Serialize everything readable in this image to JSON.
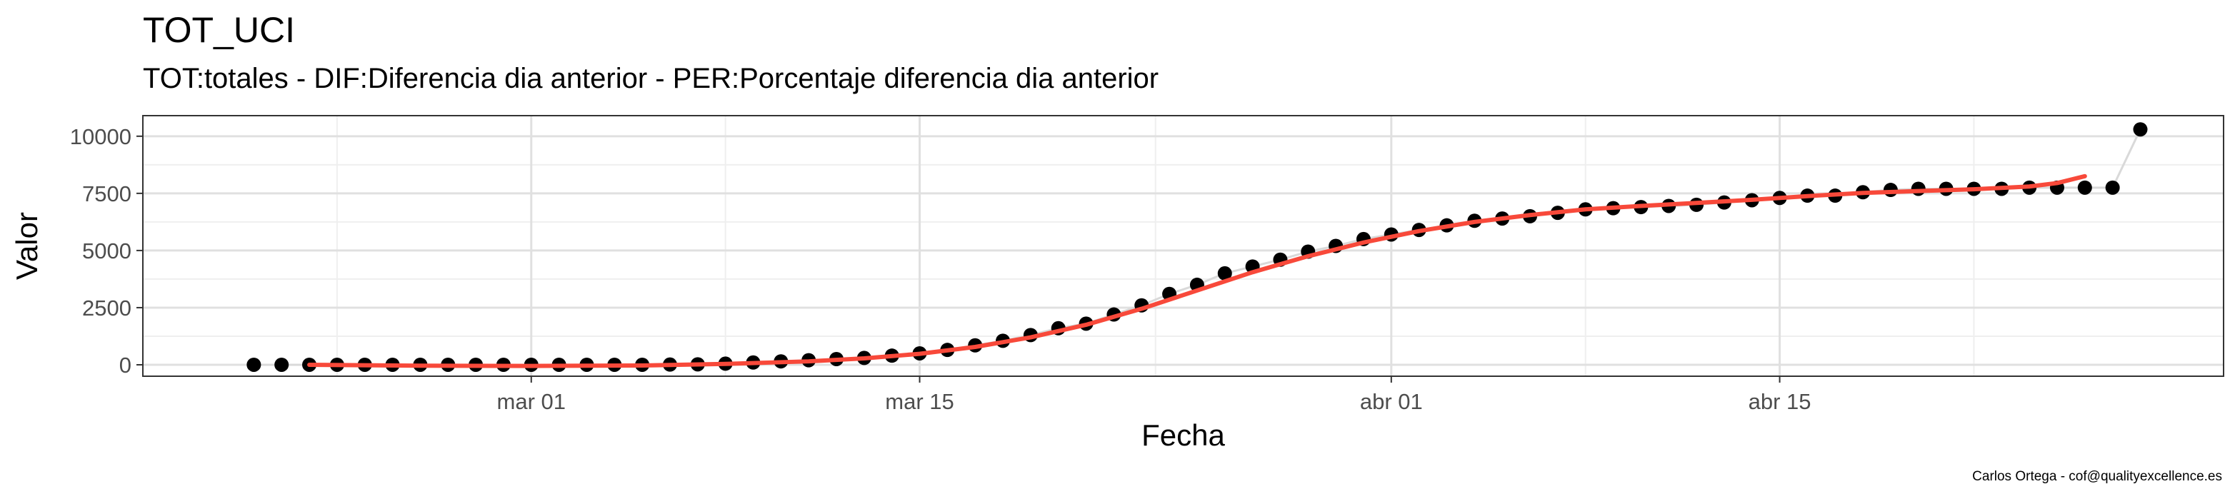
{
  "chart_data": {
    "type": "scatter",
    "title": "TOT_UCI",
    "subtitle": "TOT:totales - DIF:Diferencia dia anterior - PER:Porcentaje diferencia dia anterior",
    "xlabel": "Fecha",
    "ylabel": "Valor",
    "caption": "Carlos Ortega - cof@qualityexcellence.es",
    "x_start": "2020-02-20",
    "x_ticks": [
      {
        "date": "2020-03-01",
        "label": "mar 01"
      },
      {
        "date": "2020-03-15",
        "label": "mar 15"
      },
      {
        "date": "2020-04-01",
        "label": "abr 01"
      },
      {
        "date": "2020-04-15",
        "label": "abr 15"
      }
    ],
    "x_range": [
      "2020-02-16",
      "2020-05-01"
    ],
    "y_ticks": [
      0,
      2500,
      5000,
      7500,
      10000
    ],
    "y_range": [
      -500,
      10900
    ],
    "grid": true,
    "points": [
      [
        "2020-02-20",
        0
      ],
      [
        "2020-02-21",
        0
      ],
      [
        "2020-02-22",
        0
      ],
      [
        "2020-02-23",
        0
      ],
      [
        "2020-02-24",
        0
      ],
      [
        "2020-02-25",
        0
      ],
      [
        "2020-02-26",
        0
      ],
      [
        "2020-02-27",
        0
      ],
      [
        "2020-02-28",
        0
      ],
      [
        "2020-02-29",
        0
      ],
      [
        "2020-03-01",
        0
      ],
      [
        "2020-03-02",
        0
      ],
      [
        "2020-03-03",
        0
      ],
      [
        "2020-03-04",
        0
      ],
      [
        "2020-03-05",
        0
      ],
      [
        "2020-03-06",
        10
      ],
      [
        "2020-03-07",
        20
      ],
      [
        "2020-03-08",
        50
      ],
      [
        "2020-03-09",
        100
      ],
      [
        "2020-03-10",
        150
      ],
      [
        "2020-03-11",
        200
      ],
      [
        "2020-03-12",
        250
      ],
      [
        "2020-03-13",
        300
      ],
      [
        "2020-03-14",
        400
      ],
      [
        "2020-03-15",
        500
      ],
      [
        "2020-03-16",
        650
      ],
      [
        "2020-03-17",
        850
      ],
      [
        "2020-03-18",
        1050
      ],
      [
        "2020-03-19",
        1300
      ],
      [
        "2020-03-20",
        1600
      ],
      [
        "2020-03-21",
        1800
      ],
      [
        "2020-03-22",
        2200
      ],
      [
        "2020-03-23",
        2600
      ],
      [
        "2020-03-24",
        3100
      ],
      [
        "2020-03-25",
        3500
      ],
      [
        "2020-03-26",
        4000
      ],
      [
        "2020-03-27",
        4300
      ],
      [
        "2020-03-28",
        4600
      ],
      [
        "2020-03-29",
        4950
      ],
      [
        "2020-03-30",
        5200
      ],
      [
        "2020-03-31",
        5500
      ],
      [
        "2020-04-01",
        5700
      ],
      [
        "2020-04-02",
        5900
      ],
      [
        "2020-04-03",
        6100
      ],
      [
        "2020-04-04",
        6300
      ],
      [
        "2020-04-05",
        6400
      ],
      [
        "2020-04-06",
        6500
      ],
      [
        "2020-04-07",
        6650
      ],
      [
        "2020-04-08",
        6800
      ],
      [
        "2020-04-09",
        6850
      ],
      [
        "2020-04-10",
        6900
      ],
      [
        "2020-04-11",
        6950
      ],
      [
        "2020-04-12",
        7000
      ],
      [
        "2020-04-13",
        7100
      ],
      [
        "2020-04-14",
        7200
      ],
      [
        "2020-04-15",
        7300
      ],
      [
        "2020-04-16",
        7400
      ],
      [
        "2020-04-17",
        7400
      ],
      [
        "2020-04-18",
        7550
      ],
      [
        "2020-04-19",
        7650
      ],
      [
        "2020-04-20",
        7700
      ],
      [
        "2020-04-21",
        7700
      ],
      [
        "2020-04-22",
        7700
      ],
      [
        "2020-04-23",
        7700
      ],
      [
        "2020-04-24",
        7750
      ],
      [
        "2020-04-25",
        7750
      ],
      [
        "2020-04-26",
        7750
      ],
      [
        "2020-04-27",
        7750
      ],
      [
        "2020-04-28",
        10300
      ]
    ],
    "smooth": [
      [
        "2020-02-22",
        0
      ],
      [
        "2020-02-26",
        -40
      ],
      [
        "2020-03-01",
        -50
      ],
      [
        "2020-03-05",
        -30
      ],
      [
        "2020-03-08",
        40
      ],
      [
        "2020-03-11",
        150
      ],
      [
        "2020-03-13",
        280
      ],
      [
        "2020-03-15",
        480
      ],
      [
        "2020-03-17",
        780
      ],
      [
        "2020-03-19",
        1200
      ],
      [
        "2020-03-21",
        1750
      ],
      [
        "2020-03-23",
        2450
      ],
      [
        "2020-03-25",
        3250
      ],
      [
        "2020-03-27",
        4050
      ],
      [
        "2020-03-29",
        4750
      ],
      [
        "2020-03-31",
        5350
      ],
      [
        "2020-04-02",
        5850
      ],
      [
        "2020-04-04",
        6250
      ],
      [
        "2020-04-06",
        6550
      ],
      [
        "2020-04-08",
        6800
      ],
      [
        "2020-04-10",
        6950
      ],
      [
        "2020-04-12",
        7080
      ],
      [
        "2020-04-14",
        7220
      ],
      [
        "2020-04-16",
        7380
      ],
      [
        "2020-04-18",
        7520
      ],
      [
        "2020-04-20",
        7600
      ],
      [
        "2020-04-22",
        7680
      ],
      [
        "2020-04-24",
        7800
      ],
      [
        "2020-04-25",
        7950
      ],
      [
        "2020-04-26",
        8250
      ]
    ],
    "colors": {
      "points": "#000000",
      "smooth": "#f8493a",
      "connector": "#d9d9d9",
      "grid_major": "#e0e0e0",
      "grid_minor": "#efefef",
      "panel_border": "#333333"
    }
  }
}
